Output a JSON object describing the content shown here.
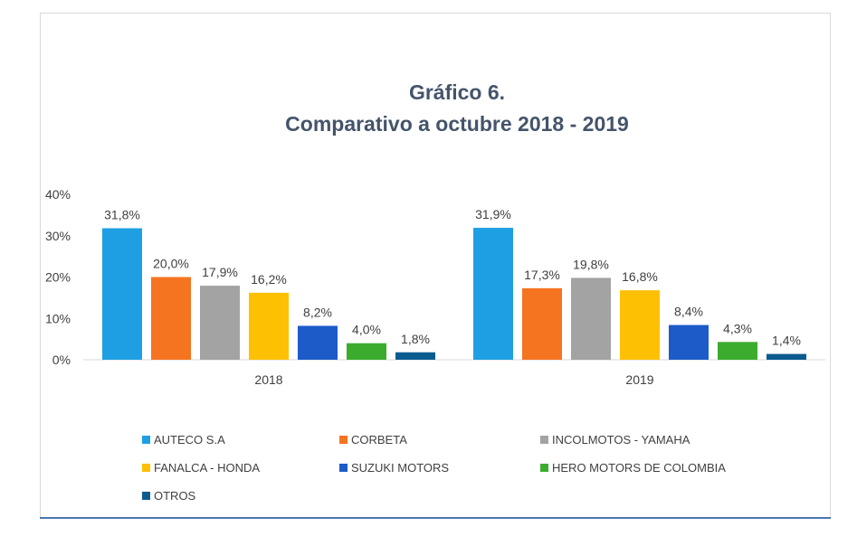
{
  "chart_data": {
    "type": "bar",
    "title": "Gráfico 6.",
    "subtitle": "Comparativo a octubre 2018 - 2019",
    "categories": [
      "2018",
      "2019"
    ],
    "series": [
      {
        "name": "AUTECO S.A",
        "color": "#1e9fe3",
        "values": [
          31.8,
          31.9
        ],
        "labels": [
          "31,8%",
          "31,9%"
        ]
      },
      {
        "name": "CORBETA",
        "color": "#f47420",
        "values": [
          20.0,
          17.3
        ],
        "labels": [
          "20,0%",
          "17,3%"
        ]
      },
      {
        "name": "INCOLMOTOS - YAMAHA",
        "color": "#a3a3a3",
        "values": [
          17.9,
          19.8
        ],
        "labels": [
          "17,9%",
          "19,8%"
        ]
      },
      {
        "name": "FANALCA - HONDA",
        "color": "#fdc003",
        "values": [
          16.2,
          16.8
        ],
        "labels": [
          "16,2%",
          "16,8%"
        ]
      },
      {
        "name": "SUZUKI MOTORS",
        "color": "#1d5bc9",
        "values": [
          8.2,
          8.4
        ],
        "labels": [
          "8,2%",
          "8,4%"
        ]
      },
      {
        "name": "HERO MOTORS DE COLOMBIA",
        "color": "#3cac2f",
        "values": [
          4.0,
          4.3
        ],
        "labels": [
          "4,0%",
          "4,3%"
        ]
      },
      {
        "name": "OTROS",
        "color": "#0a5b90",
        "values": [
          1.8,
          1.4
        ],
        "labels": [
          "1,8%",
          "1,4%"
        ]
      }
    ],
    "yticks": [
      "0%",
      "10%",
      "20%",
      "30%",
      "40%"
    ],
    "ylim": [
      0,
      40
    ],
    "xlabel": "",
    "ylabel": "",
    "legend_position": "bottom"
  },
  "colors": {
    "title": "#44546a",
    "axis_text": "#404040",
    "frame_rule": "#4a76b0"
  }
}
